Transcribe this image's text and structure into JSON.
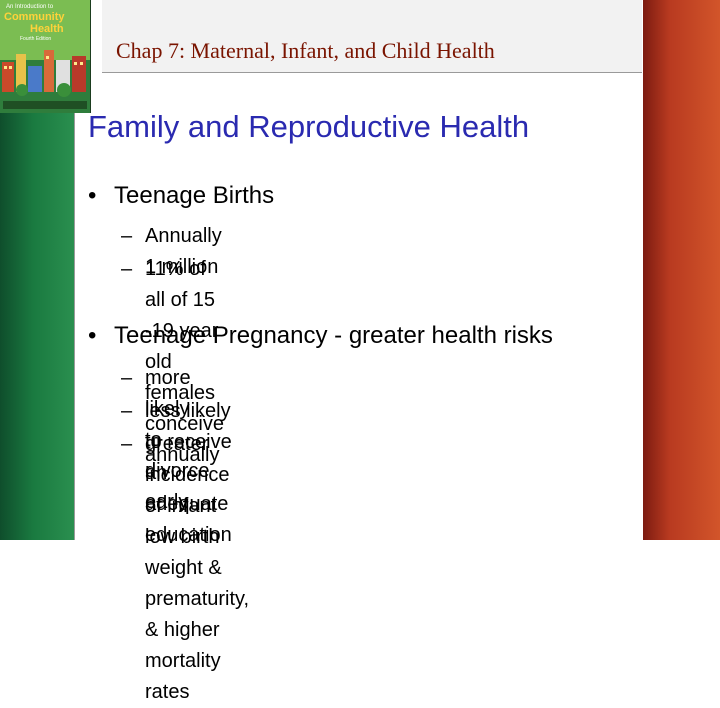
{
  "header": {
    "title": "Chap 7: Maternal, Infant, and Child Health"
  },
  "cover": {
    "line1": "An Introduction to",
    "line2": "Community",
    "line3": "Health",
    "line4": "Fourth Edition"
  },
  "slide": {
    "title": "Family and Reproductive Health",
    "bullets": [
      {
        "marker": "•",
        "text": "Teenage Births",
        "subs": [
          {
            "marker": "–",
            "text": "Annually 1 million"
          },
          {
            "marker": "–",
            "text": "11% of all of 15 -19 year old females\nconceive annually"
          }
        ]
      },
      {
        "marker": "•",
        "text": "Teenage Pregnancy - greater health risks",
        "subs": [
          {
            "marker": "–",
            "text": "more likely to divorce early"
          },
          {
            "marker": "–",
            "text": "less likely to receive an adequate education"
          },
          {
            "marker": "–",
            "text": "greater incidence of infant low birth weight &\nprematurity, & higher mortality rates"
          }
        ]
      }
    ]
  },
  "colors": {
    "left_bar": "#1a7a40",
    "right_bar": "#c0442a",
    "title": "#2a2ab0",
    "header_text": "#7a1400"
  }
}
